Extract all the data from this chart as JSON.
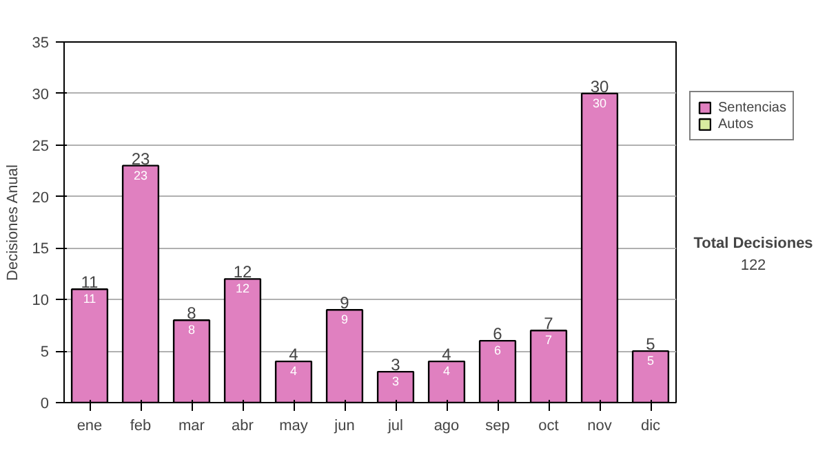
{
  "chart_data": {
    "type": "bar",
    "stacked": true,
    "ylabel": "Decisiones Anual",
    "categories": [
      "ene",
      "feb",
      "mar",
      "abr",
      "may",
      "jun",
      "jul",
      "ago",
      "sep",
      "oct",
      "nov",
      "dic"
    ],
    "series": [
      {
        "name": "Sentencias",
        "color": "#e080c0",
        "values": [
          11,
          23,
          8,
          12,
          4,
          9,
          3,
          4,
          6,
          7,
          30,
          5
        ],
        "value_labels": [
          "11",
          "23",
          "8",
          "12",
          "4",
          "9",
          "3",
          "4",
          "6",
          "7",
          "30",
          "5"
        ]
      },
      {
        "name": "Autos",
        "color": "#d8eca0",
        "values": [
          null,
          null,
          null,
          null,
          null,
          null,
          null,
          null,
          null,
          null,
          null,
          null
        ]
      }
    ],
    "totals": [
      "11",
      "23",
      "8",
      "12",
      "4",
      "9",
      "3",
      "4",
      "6",
      "7",
      "30",
      "5"
    ],
    "ylim": [
      0,
      35
    ],
    "yticks": [
      0,
      5,
      10,
      15,
      20,
      25,
      30,
      35
    ],
    "grid": "y",
    "legend": "right",
    "annotations": [
      "Total Decisiones",
      "122"
    ]
  }
}
